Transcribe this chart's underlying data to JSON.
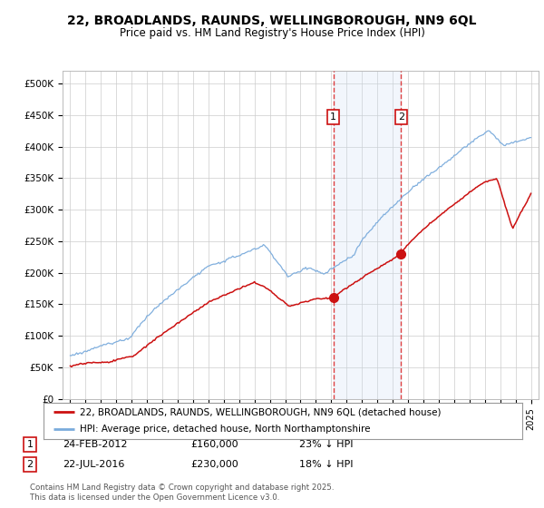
{
  "title_line1": "22, BROADLANDS, RAUNDS, WELLINGBOROUGH, NN9 6QL",
  "title_line2": "Price paid vs. HM Land Registry's House Price Index (HPI)",
  "bg_color": "#ffffff",
  "plot_bg_color": "#ffffff",
  "grid_color": "#cccccc",
  "hpi_color": "#7aabdc",
  "price_color": "#cc1111",
  "marker1_date_x": 2012.13,
  "marker1_price": 160000,
  "marker2_date_x": 2016.55,
  "marker2_price": 230000,
  "shade_color": "#ccdff5",
  "xlim": [
    1994.5,
    2025.5
  ],
  "ylim": [
    0,
    520000
  ],
  "yticks": [
    0,
    50000,
    100000,
    150000,
    200000,
    250000,
    300000,
    350000,
    400000,
    450000,
    500000
  ],
  "ytick_labels": [
    "£0",
    "£50K",
    "£100K",
    "£150K",
    "£200K",
    "£250K",
    "£300K",
    "£350K",
    "£400K",
    "£450K",
    "£500K"
  ],
  "xticks": [
    1995,
    1996,
    1997,
    1998,
    1999,
    2000,
    2001,
    2002,
    2003,
    2004,
    2005,
    2006,
    2007,
    2008,
    2009,
    2010,
    2011,
    2012,
    2013,
    2014,
    2015,
    2016,
    2017,
    2018,
    2019,
    2020,
    2021,
    2022,
    2023,
    2024,
    2025
  ],
  "legend_label1": "22, BROADLANDS, RAUNDS, WELLINGBOROUGH, NN9 6QL (detached house)",
  "legend_label2": "HPI: Average price, detached house, North Northamptonshire",
  "annotation1_date": "24-FEB-2012",
  "annotation1_price_str": "£160,000",
  "annotation1_pct": "23% ↓ HPI",
  "annotation2_date": "22-JUL-2016",
  "annotation2_price_str": "£230,000",
  "annotation2_pct": "18% ↓ HPI",
  "footer": "Contains HM Land Registry data © Crown copyright and database right 2025.\nThis data is licensed under the Open Government Licence v3.0."
}
